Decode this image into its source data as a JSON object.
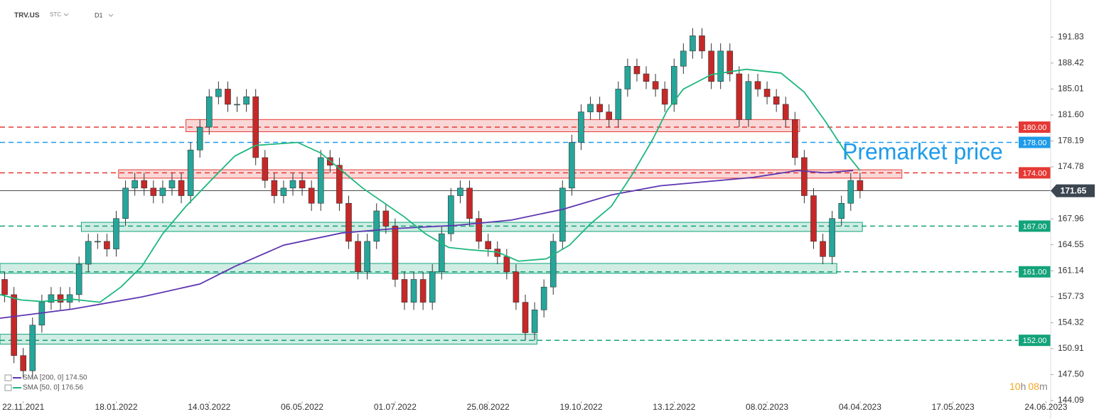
{
  "header": {
    "symbol": "TRV.US",
    "market": "STC",
    "interval": "D1"
  },
  "chart_data": {
    "type": "candlestick",
    "x": [
      2,
      6,
      10,
      14,
      18,
      22,
      26,
      30,
      34,
      38,
      42,
      46,
      50,
      54,
      58,
      62,
      66,
      70,
      74,
      78,
      82,
      86,
      90,
      94,
      98,
      102,
      106,
      110,
      114,
      118,
      122,
      126,
      130,
      134,
      138,
      142,
      146,
      150,
      154,
      158,
      162,
      166,
      170,
      174,
      178,
      182,
      186,
      190,
      194,
      198,
      202,
      206,
      210,
      214,
      218,
      222,
      226,
      230,
      234,
      238,
      242,
      246,
      250,
      254,
      258,
      262,
      266,
      270,
      274,
      278,
      282,
      286,
      290,
      294,
      298,
      302,
      306,
      310,
      314,
      318,
      322,
      326,
      330,
      334,
      338,
      342,
      346,
      350,
      354,
      358,
      362,
      366,
      370
    ],
    "open": [
      160,
      158,
      150,
      148,
      154,
      157,
      158,
      157,
      158,
      162,
      165,
      165,
      164,
      168,
      172,
      173,
      172,
      171,
      172,
      173,
      171,
      177,
      180,
      184,
      185,
      183,
      183,
      184,
      176,
      173,
      171,
      172,
      173,
      172,
      170,
      176,
      175,
      170,
      165,
      161,
      165,
      169,
      167,
      160,
      157,
      160,
      157,
      161,
      166,
      171,
      172,
      168,
      165,
      164,
      163,
      161,
      157,
      153,
      156,
      159,
      165,
      172,
      178,
      182,
      183,
      182,
      181,
      185,
      188,
      187,
      186,
      185,
      183,
      188,
      190,
      192,
      190,
      186,
      190,
      187,
      181,
      186,
      185,
      184,
      183,
      181,
      176,
      171,
      165,
      163,
      168,
      170,
      173
    ],
    "high": [
      161,
      159,
      151,
      155,
      158,
      159,
      159,
      159,
      163,
      166,
      166,
      166,
      169,
      173,
      174,
      174,
      173,
      173,
      174,
      174,
      178,
      181,
      185,
      186,
      186,
      184,
      185,
      185,
      177,
      174,
      173,
      174,
      174,
      173,
      177,
      177,
      176,
      171,
      166,
      166,
      170,
      170,
      168,
      161,
      161,
      161,
      162,
      167,
      172,
      173,
      173,
      169,
      166,
      165,
      164,
      162,
      158,
      157,
      160,
      166,
      173,
      179,
      183,
      184,
      184,
      183,
      186,
      189,
      189,
      188,
      187,
      186,
      189,
      191,
      193,
      193,
      191,
      191,
      191,
      188,
      187,
      187,
      186,
      185,
      184,
      182,
      177,
      172,
      166,
      169,
      171,
      174,
      174
    ],
    "low": [
      157,
      149,
      147,
      147,
      153,
      156,
      156,
      156,
      157,
      161,
      164,
      163,
      163,
      167,
      171,
      171,
      170,
      170,
      171,
      170,
      170,
      176,
      179,
      183,
      182,
      182,
      182,
      175,
      172,
      170,
      170,
      171,
      171,
      169,
      169,
      174,
      169,
      164,
      160,
      160,
      164,
      166,
      159,
      156,
      156,
      156,
      156,
      160,
      165,
      170,
      167,
      164,
      163,
      162,
      160,
      156,
      152,
      152,
      155,
      158,
      164,
      171,
      177,
      181,
      181,
      180,
      180,
      184,
      186,
      185,
      184,
      182,
      182,
      187,
      189,
      189,
      185,
      185,
      186,
      180,
      180,
      184,
      183,
      182,
      180,
      175,
      170,
      164,
      162,
      162,
      167,
      169,
      170.65
    ],
    "close": [
      158,
      150,
      148,
      154,
      157,
      158,
      157,
      158,
      162,
      165,
      165,
      164,
      168,
      172,
      173,
      172,
      171,
      172,
      173,
      171,
      177,
      180,
      184,
      185,
      183,
      183,
      184,
      176,
      173,
      171,
      172,
      173,
      172,
      170,
      176,
      175,
      170,
      165,
      161,
      165,
      169,
      167,
      160,
      157,
      160,
      157,
      161,
      166,
      171,
      172,
      168,
      165,
      164,
      163,
      161,
      157,
      153,
      156,
      159,
      165,
      172,
      178,
      182,
      183,
      182,
      181,
      185,
      188,
      187,
      186,
      185,
      183,
      188,
      190,
      192,
      190,
      186,
      190,
      187,
      181,
      186,
      185,
      184,
      183,
      181,
      176,
      171,
      165,
      163,
      168,
      170,
      173,
      171.65
    ],
    "up_color": "#26a69a",
    "down_color": "#c62828",
    "series": [
      {
        "name": "SMA [200, 0] 174.50",
        "color": "#5e35b1",
        "x": [
          0,
          31,
          61,
          86,
          101,
          122,
          147,
          171,
          196,
          220,
          242,
          263,
          284,
          306,
          324,
          343,
          355,
          367
        ],
        "values": [
          154.9,
          156.1,
          157.7,
          159.4,
          161.7,
          164.5,
          166.1,
          166.7,
          167.1,
          167.8,
          169.2,
          171.1,
          172.3,
          172.9,
          173.4,
          174.3,
          174,
          174.3
        ]
      },
      {
        "name": "SMA [50, 0] 176.56",
        "color": "#1db77d",
        "x": [
          0,
          9,
          18,
          31,
          43,
          52,
          61,
          70,
          80,
          92,
          101,
          110,
          128,
          138,
          147,
          156,
          165,
          174,
          183,
          193,
          202,
          214,
          223,
          235,
          245,
          254,
          263,
          272,
          281,
          287,
          294,
          306,
          321,
          336,
          346,
          355,
          364,
          370
        ],
        "values": [
          158,
          157.3,
          157.1,
          157.4,
          157,
          159,
          161.7,
          166,
          169.6,
          173.4,
          176.2,
          177.6,
          178,
          176.6,
          174.3,
          172,
          170.1,
          168.2,
          166,
          164.2,
          163.9,
          163.6,
          162.4,
          162.7,
          164.5,
          167.3,
          169.6,
          173.8,
          178.5,
          182.2,
          185,
          186.9,
          187.6,
          187.1,
          184.6,
          180.8,
          176.6,
          174.3
        ]
      }
    ],
    "xlim": [
      0,
      452
    ],
    "xticks": [
      {
        "value": 10,
        "label": "22.11.2021"
      },
      {
        "value": 50,
        "label": "18.01.2022"
      },
      {
        "value": 90,
        "label": "14.03.2022"
      },
      {
        "value": 130,
        "label": "06.05.2022"
      },
      {
        "value": 170,
        "label": "01.07.2022"
      },
      {
        "value": 210,
        "label": "25.08.2022"
      },
      {
        "value": 250,
        "label": "19.10.2022"
      },
      {
        "value": 290,
        "label": "13.12.2022"
      },
      {
        "value": 330,
        "label": "08.02.2023"
      },
      {
        "value": 370,
        "label": "04.04.2023"
      },
      {
        "value": 410,
        "label": "17.05.2023"
      },
      {
        "value": 450,
        "label": "24.06.2023"
      }
    ],
    "ylim": [
      144,
      196.7
    ],
    "yticks": [
      191.83,
      188.42,
      185.01,
      {
        "value": 181.6,
        "label": "181.60"
      },
      178.19,
      174.78,
      167.96,
      164.55,
      161.14,
      157.73,
      154.32,
      150.91,
      {
        "value": 147.5,
        "label": "147.50"
      },
      144.09
    ],
    "levels": [
      {
        "value": 180,
        "label": "180.00",
        "color": "#e53935"
      },
      {
        "value": 178,
        "label": "178.00",
        "color": "#1e9be9"
      },
      {
        "value": 174,
        "label": "174.00",
        "color": "#e53935"
      },
      {
        "value": 167,
        "label": "167.00",
        "color": "#12a37a"
      },
      {
        "value": 161,
        "label": "161.00",
        "color": "#12a37a"
      },
      {
        "value": 152,
        "label": "152.00",
        "color": "#12a37a"
      }
    ],
    "zones": [
      {
        "x": [
          80,
          344
        ],
        "y": [
          179.4,
          181
        ],
        "color": "#e53935"
      },
      {
        "x": [
          51,
          388
        ],
        "y": [
          173.3,
          174.4
        ],
        "color": "#e53935"
      },
      {
        "x": [
          35,
          371
        ],
        "y": [
          166.3,
          167.5
        ],
        "color": "#12a37a"
      },
      {
        "x": [
          0,
          360
        ],
        "y": [
          160.8,
          162.1
        ],
        "color": "#12a37a"
      },
      {
        "x": [
          0,
          231
        ],
        "y": [
          151.5,
          152.8
        ],
        "color": "#12a37a"
      }
    ],
    "last_price": 171.65,
    "annotation": "Premarket price",
    "countdown": {
      "hours": "10",
      "hours_unit": "h",
      "minutes": "08",
      "minutes_unit": "m"
    }
  }
}
